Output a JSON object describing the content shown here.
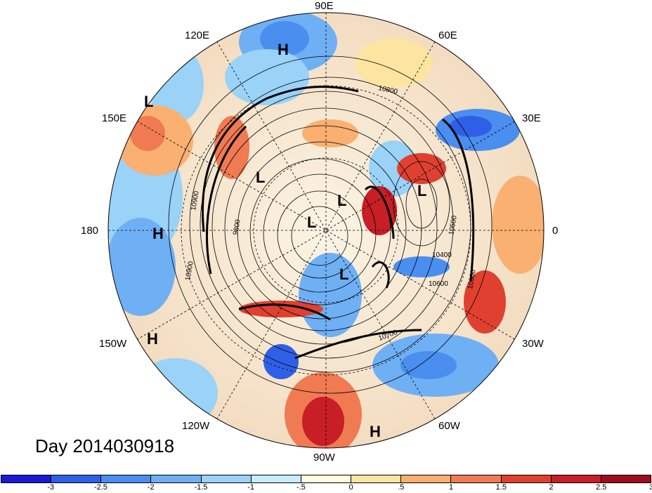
{
  "title": "Day 2014030918",
  "longitude_labels": [
    "90E",
    "60E",
    "30E",
    "0",
    "30W",
    "60W",
    "90W",
    "120W",
    "150W",
    "180",
    "150E",
    "120E"
  ],
  "pressure_centers": [
    "H",
    "L",
    "L",
    "L",
    "L",
    "L",
    "L",
    "H",
    "H",
    "H"
  ],
  "contour_labels": [
    "10800",
    "10900",
    "10900",
    "9800",
    "10500",
    "10400",
    "10600",
    "10900",
    "10700"
  ],
  "colorbar": {
    "colors": [
      "#1a1ad4",
      "#2f5fe6",
      "#4a8ef0",
      "#6fb0f5",
      "#9ad2f8",
      "#c8ecfb",
      "#ffffe0",
      "#fde4a0",
      "#f9b070",
      "#f07a52",
      "#e04030",
      "#c81e26",
      "#9e0c1e"
    ],
    "ticks": [
      "-3",
      "-2.5",
      "-2",
      "-1.5",
      "-1",
      "-.5",
      "0",
      ".5",
      "1",
      "1.5",
      "2",
      "2.5",
      "3"
    ]
  }
}
